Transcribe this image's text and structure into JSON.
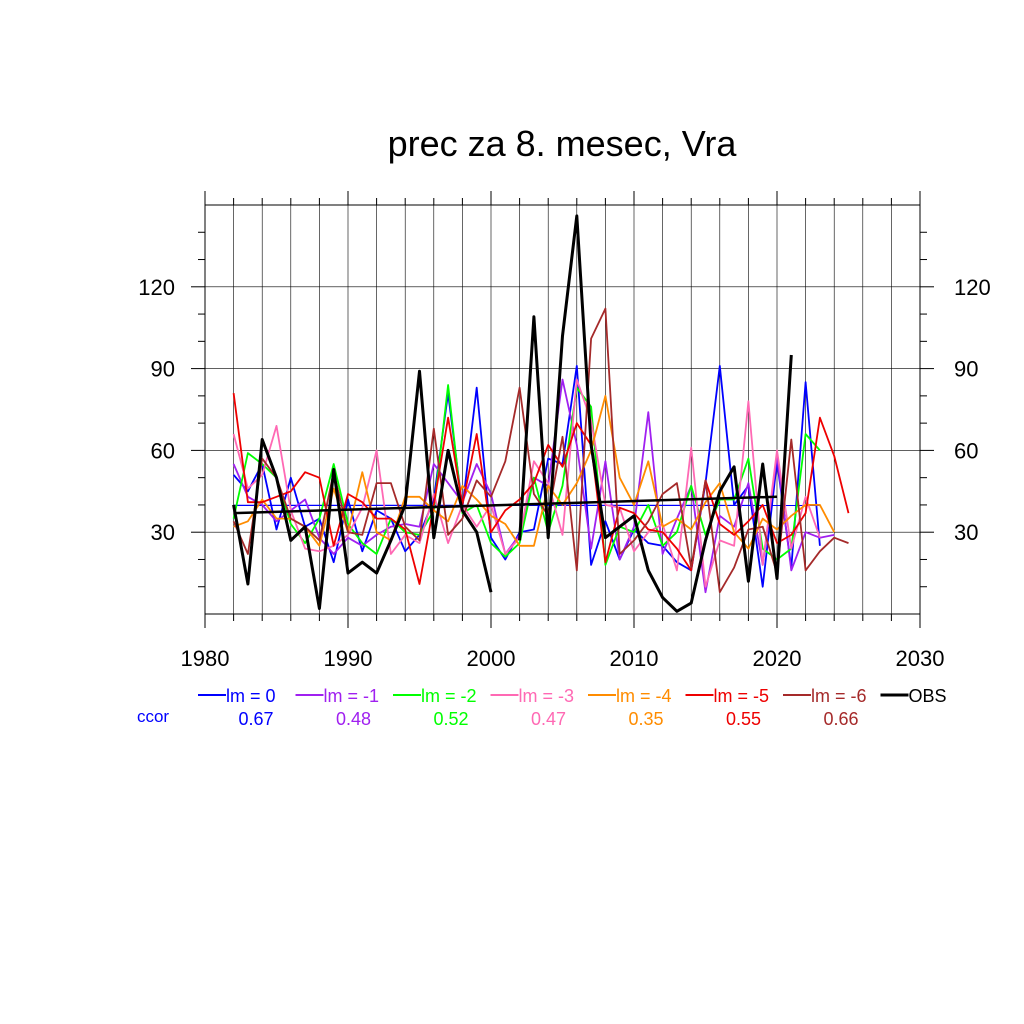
{
  "chart_data": {
    "type": "line",
    "title": "prec za 8. mesec, Vra",
    "xlabel": "",
    "ylabel": "",
    "xlim": [
      1980,
      2030
    ],
    "ylim": [
      0,
      150
    ],
    "x_ticks": [
      1980,
      1990,
      2000,
      2010,
      2020,
      2030
    ],
    "y_ticks": [
      30,
      60,
      90,
      120
    ],
    "grid": true,
    "ccor_label": "ccor",
    "legend_position": "bottom",
    "series": [
      {
        "name": "lm = 0",
        "color": "#0000ff",
        "ccor": "0.67",
        "x_start": 1982,
        "values": [
          51,
          45,
          55,
          31,
          50,
          32,
          35,
          19,
          42,
          23,
          38,
          35,
          23,
          29,
          42,
          81,
          39,
          83,
          28,
          20,
          30,
          31,
          57,
          55,
          91,
          18,
          34,
          20,
          31,
          26,
          25,
          19,
          16,
          48,
          91,
          40,
          47,
          10,
          56,
          17,
          85,
          25
        ]
      },
      {
        "name": "lm = -1",
        "color": "#a020f0",
        "ccor": "0.48",
        "x_start": 1982,
        "values": [
          55,
          43,
          40,
          34,
          38,
          42,
          28,
          22,
          28,
          25,
          29,
          32,
          33,
          32,
          55,
          48,
          41,
          55,
          44,
          22,
          29,
          50,
          47,
          86,
          62,
          24,
          56,
          20,
          32,
          74,
          22,
          35,
          47,
          8,
          36,
          32,
          48,
          18,
          58,
          16,
          30,
          28,
          29
        ]
      },
      {
        "name": "lm = -2",
        "color": "#00ff00",
        "ccor": "0.52",
        "x_start": 1982,
        "values": [
          35,
          59,
          55,
          50,
          33,
          26,
          35,
          55,
          33,
          26,
          22,
          35,
          30,
          29,
          38,
          84,
          37,
          40,
          26,
          21,
          26,
          50,
          30,
          47,
          83,
          76,
          18,
          32,
          30,
          40,
          25,
          30,
          47,
          29,
          42,
          42,
          57,
          24,
          20,
          24,
          66,
          60
        ]
      },
      {
        "name": "lm = -3",
        "color": "#ff69b4",
        "ccor": "0.47",
        "x_start": 1982,
        "values": [
          66,
          46,
          51,
          69,
          38,
          24,
          23,
          25,
          29,
          39,
          60,
          22,
          29,
          26,
          44,
          26,
          40,
          32,
          40,
          22,
          28,
          56,
          48,
          29,
          86,
          71,
          40,
          39,
          23,
          30,
          33,
          16,
          61,
          10,
          27,
          25,
          78,
          18,
          60,
          24,
          43,
          28
        ]
      },
      {
        "name": "lm = -4",
        "color": "#ff8c00",
        "ccor": "0.35",
        "x_start": 1982,
        "values": [
          32,
          34,
          42,
          35,
          35,
          32,
          25,
          46,
          30,
          52,
          30,
          27,
          43,
          43,
          38,
          34,
          47,
          42,
          36,
          33,
          25,
          25,
          47,
          40,
          48,
          60,
          80,
          50,
          40,
          56,
          32,
          35,
          31,
          41,
          48,
          30,
          24,
          35,
          31,
          36,
          40,
          40,
          30
        ]
      },
      {
        "name": "lm = -5",
        "color": "#ee0000",
        "ccor": "0.55",
        "x_start": 1982,
        "values": [
          81,
          41,
          41,
          43,
          45,
          52,
          50,
          25,
          44,
          41,
          35,
          35,
          31,
          11,
          40,
          72,
          40,
          66,
          30,
          38,
          42,
          48,
          62,
          54,
          70,
          62,
          19,
          39,
          37,
          31,
          30,
          24,
          16,
          49,
          33,
          29,
          34,
          40,
          26,
          29,
          37,
          72,
          58,
          37
        ]
      },
      {
        "name": "lm = -6",
        "color": "#a52a2a",
        "ccor": "0.66",
        "x_start": 1982,
        "values": [
          34,
          22,
          57,
          50,
          35,
          32,
          27,
          52,
          30,
          29,
          48,
          48,
          32,
          27,
          68,
          29,
          35,
          49,
          43,
          56,
          83,
          44,
          36,
          65,
          16,
          101,
          112,
          22,
          27,
          34,
          44,
          48,
          17,
          49,
          8,
          17,
          31,
          32,
          15,
          64,
          16,
          23,
          28,
          26
        ]
      },
      {
        "name": "OBS",
        "color": "#000000",
        "ccor": "",
        "x_start": 1982,
        "values": [
          40,
          11,
          64,
          50,
          27,
          32,
          2,
          53,
          15,
          19,
          15,
          27,
          40,
          89,
          28,
          60,
          38,
          30,
          8,
          null,
          27,
          109,
          28,
          102,
          146,
          62,
          28,
          32,
          36,
          16,
          6,
          1,
          4,
          27,
          45,
          54,
          12,
          55,
          13,
          95
        ],
        "trend": {
          "x": [
            1982,
            2020
          ],
          "y": [
            37,
            43
          ]
        }
      }
    ]
  }
}
